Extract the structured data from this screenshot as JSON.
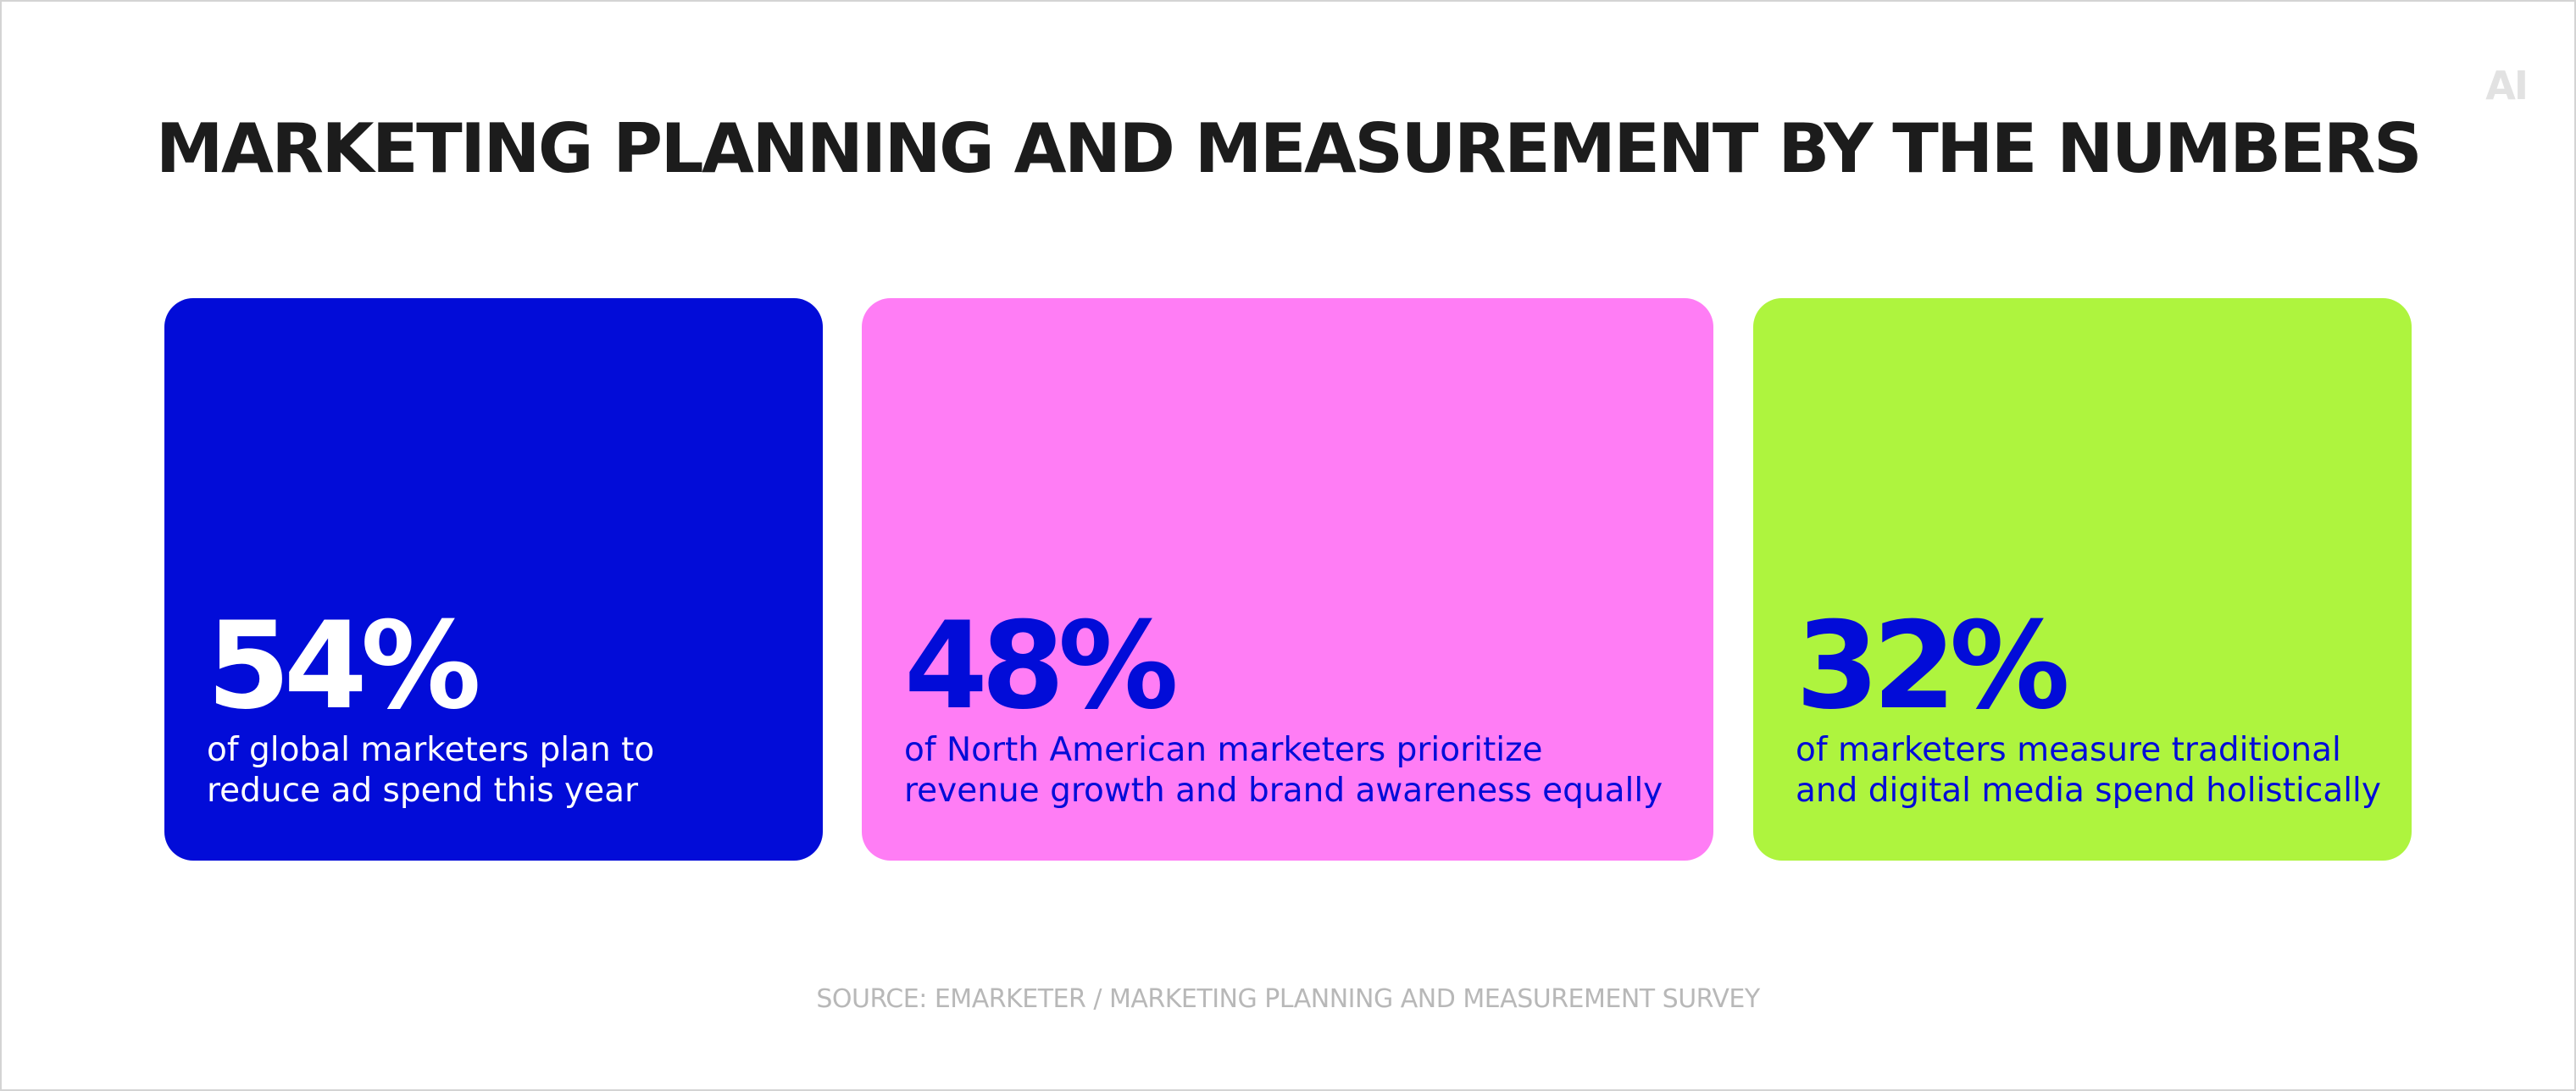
{
  "brand": {
    "logo_text": "AI"
  },
  "title": "MARKETING PLANNING AND MEASUREMENT BY THE NUMBERS",
  "cards": [
    {
      "stat": "54%",
      "desc_line1": "of global marketers plan to",
      "desc_line2": "reduce ad spend this year",
      "bg_color": "#020cd8",
      "stat_color": "#ffffff",
      "text_color": "#ffffff"
    },
    {
      "stat": "48%",
      "desc_line1": "of North American marketers prioritize",
      "desc_line2": "revenue growth and brand awareness equally",
      "bg_color": "#ff7df5",
      "stat_color": "#020cd8",
      "text_color": "#020cd8"
    },
    {
      "stat": "32%",
      "desc_line1": "of marketers measure traditional",
      "desc_line2": "and digital media spend holistically",
      "bg_color": "#aef43e",
      "stat_color": "#020cd8",
      "text_color": "#020cd8"
    }
  ],
  "source": "SOURCE: EMARKETER / MARKETING PLANNING AND MEASUREMENT SURVEY"
}
